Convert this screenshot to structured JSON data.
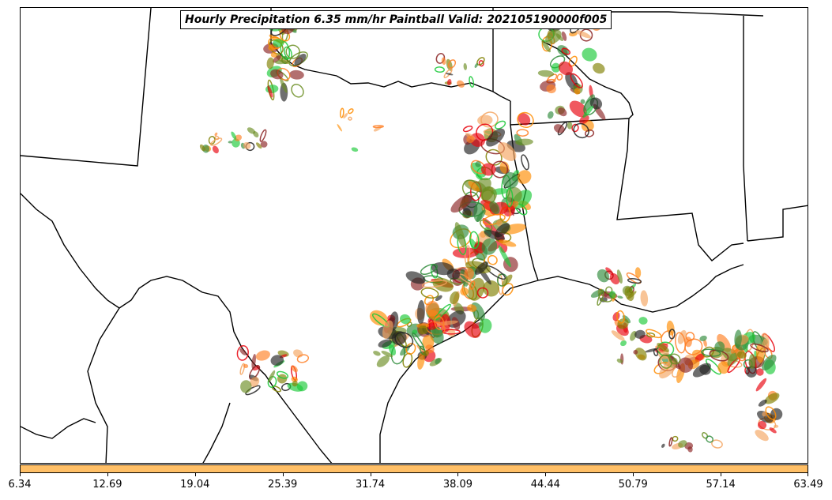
{
  "title": "Hourly Precipitation 6.35 mm/hr Paintball Valid: 202105190000f005",
  "colorbar": {
    "color": "#ffbf66",
    "ticks": [
      "6.34",
      "12.69",
      "19.04",
      "25.39",
      "31.74",
      "38.09",
      "44.44",
      "50.79",
      "57.14",
      "63.49"
    ]
  },
  "ensemble_colors": [
    "#ff8c00",
    "#e8000b",
    "#1ac938",
    "#8b2323",
    "#6b8e23",
    "#2e8b3a",
    "#ff7f24",
    "#222222",
    "#f4a460",
    "#808000"
  ]
}
